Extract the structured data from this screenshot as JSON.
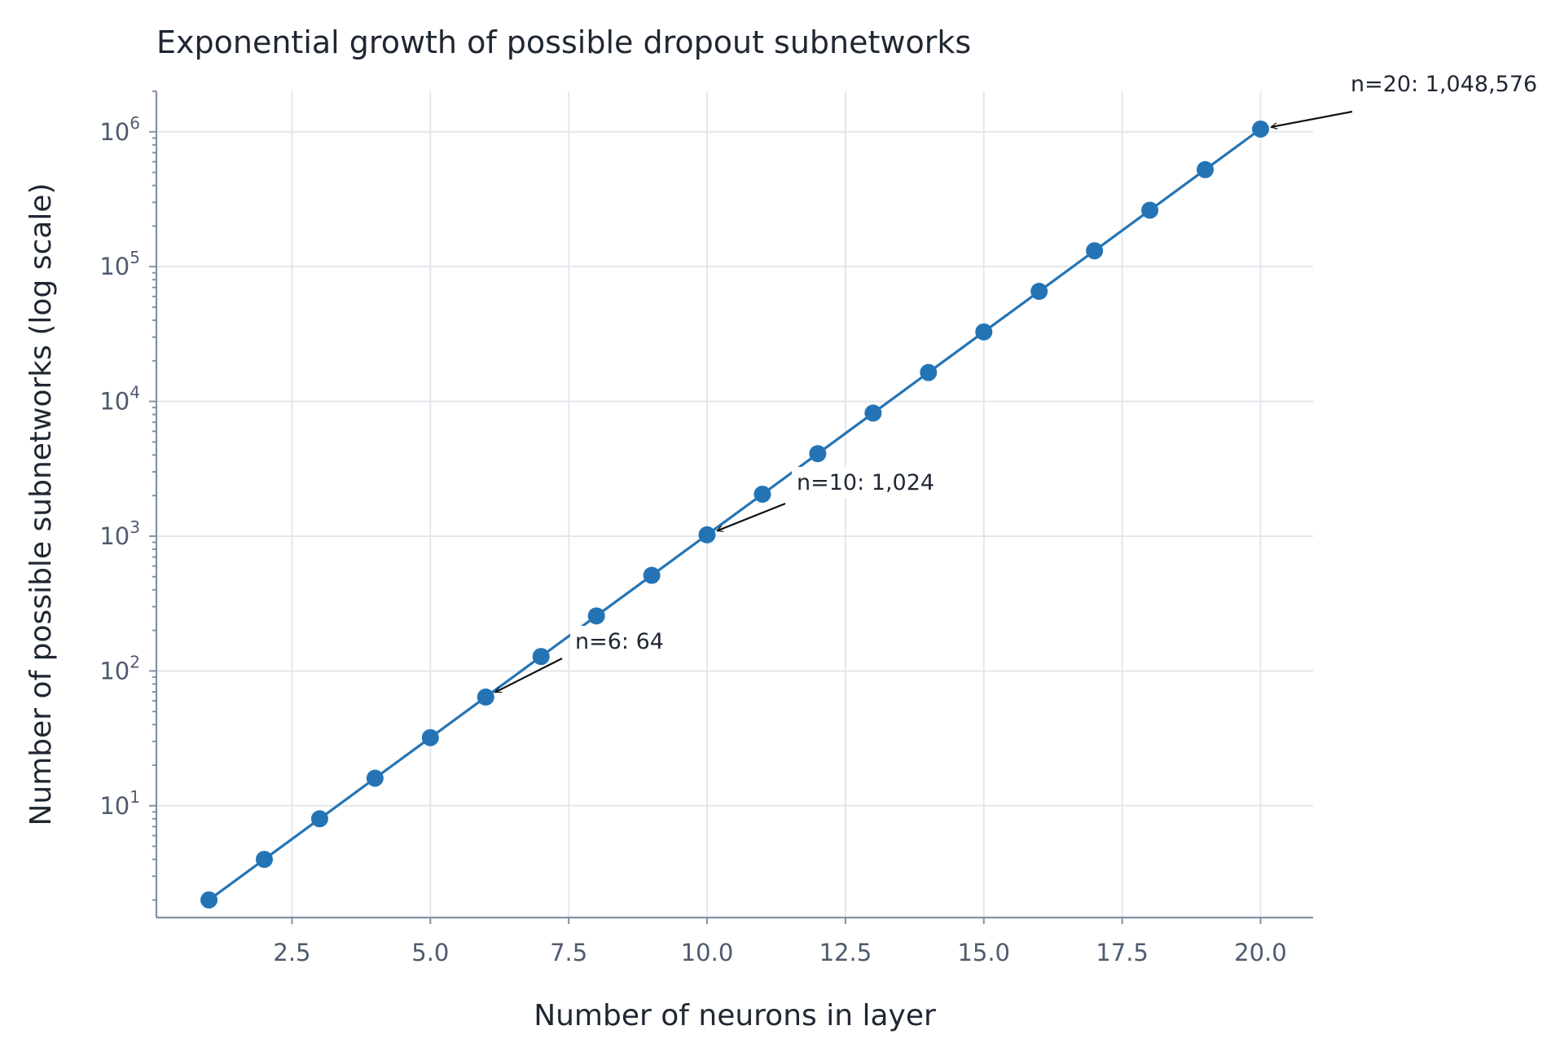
{
  "chart_data": {
    "type": "line",
    "title": "Exponential growth of possible dropout subnetworks",
    "xlabel": "Number of neurons in layer",
    "ylabel": "Number of possible subnetworks (log scale)",
    "y_scale": "log",
    "xlim": [
      0.05,
      20.95
    ],
    "ylim": [
      1.48,
      2000000
    ],
    "grid": true,
    "x_ticks": [
      2.5,
      5.0,
      7.5,
      10.0,
      12.5,
      15.0,
      17.5,
      20.0
    ],
    "x_tick_labels": [
      "2.5",
      "5.0",
      "7.5",
      "10.0",
      "12.5",
      "15.0",
      "17.5",
      "20.0"
    ],
    "y_ticks": [
      {
        "value": 10,
        "base": "10",
        "exp": "1"
      },
      {
        "value": 100,
        "base": "10",
        "exp": "2"
      },
      {
        "value": 1000,
        "base": "10",
        "exp": "3"
      },
      {
        "value": 10000,
        "base": "10",
        "exp": "4"
      },
      {
        "value": 100000,
        "base": "10",
        "exp": "5"
      },
      {
        "value": 1000000,
        "base": "10",
        "exp": "6"
      }
    ],
    "series": [
      {
        "color": "#2474b5",
        "marker": "circle",
        "x": [
          1,
          2,
          3,
          4,
          5,
          6,
          7,
          8,
          9,
          10,
          11,
          12,
          13,
          14,
          15,
          16,
          17,
          18,
          19,
          20
        ],
        "y": [
          2,
          4,
          8,
          16,
          32,
          64,
          128,
          256,
          512,
          1024,
          2048,
          4096,
          8192,
          16384,
          32768,
          65536,
          131072,
          262144,
          524288,
          1048576
        ]
      }
    ],
    "annotations": [
      {
        "text": "n=6: 64",
        "x": 6,
        "y": 64
      },
      {
        "text": "n=10: 1,024",
        "x": 10,
        "y": 1024
      },
      {
        "text": "n=20: 1,048,576",
        "x": 20,
        "y": 1048576
      }
    ]
  }
}
